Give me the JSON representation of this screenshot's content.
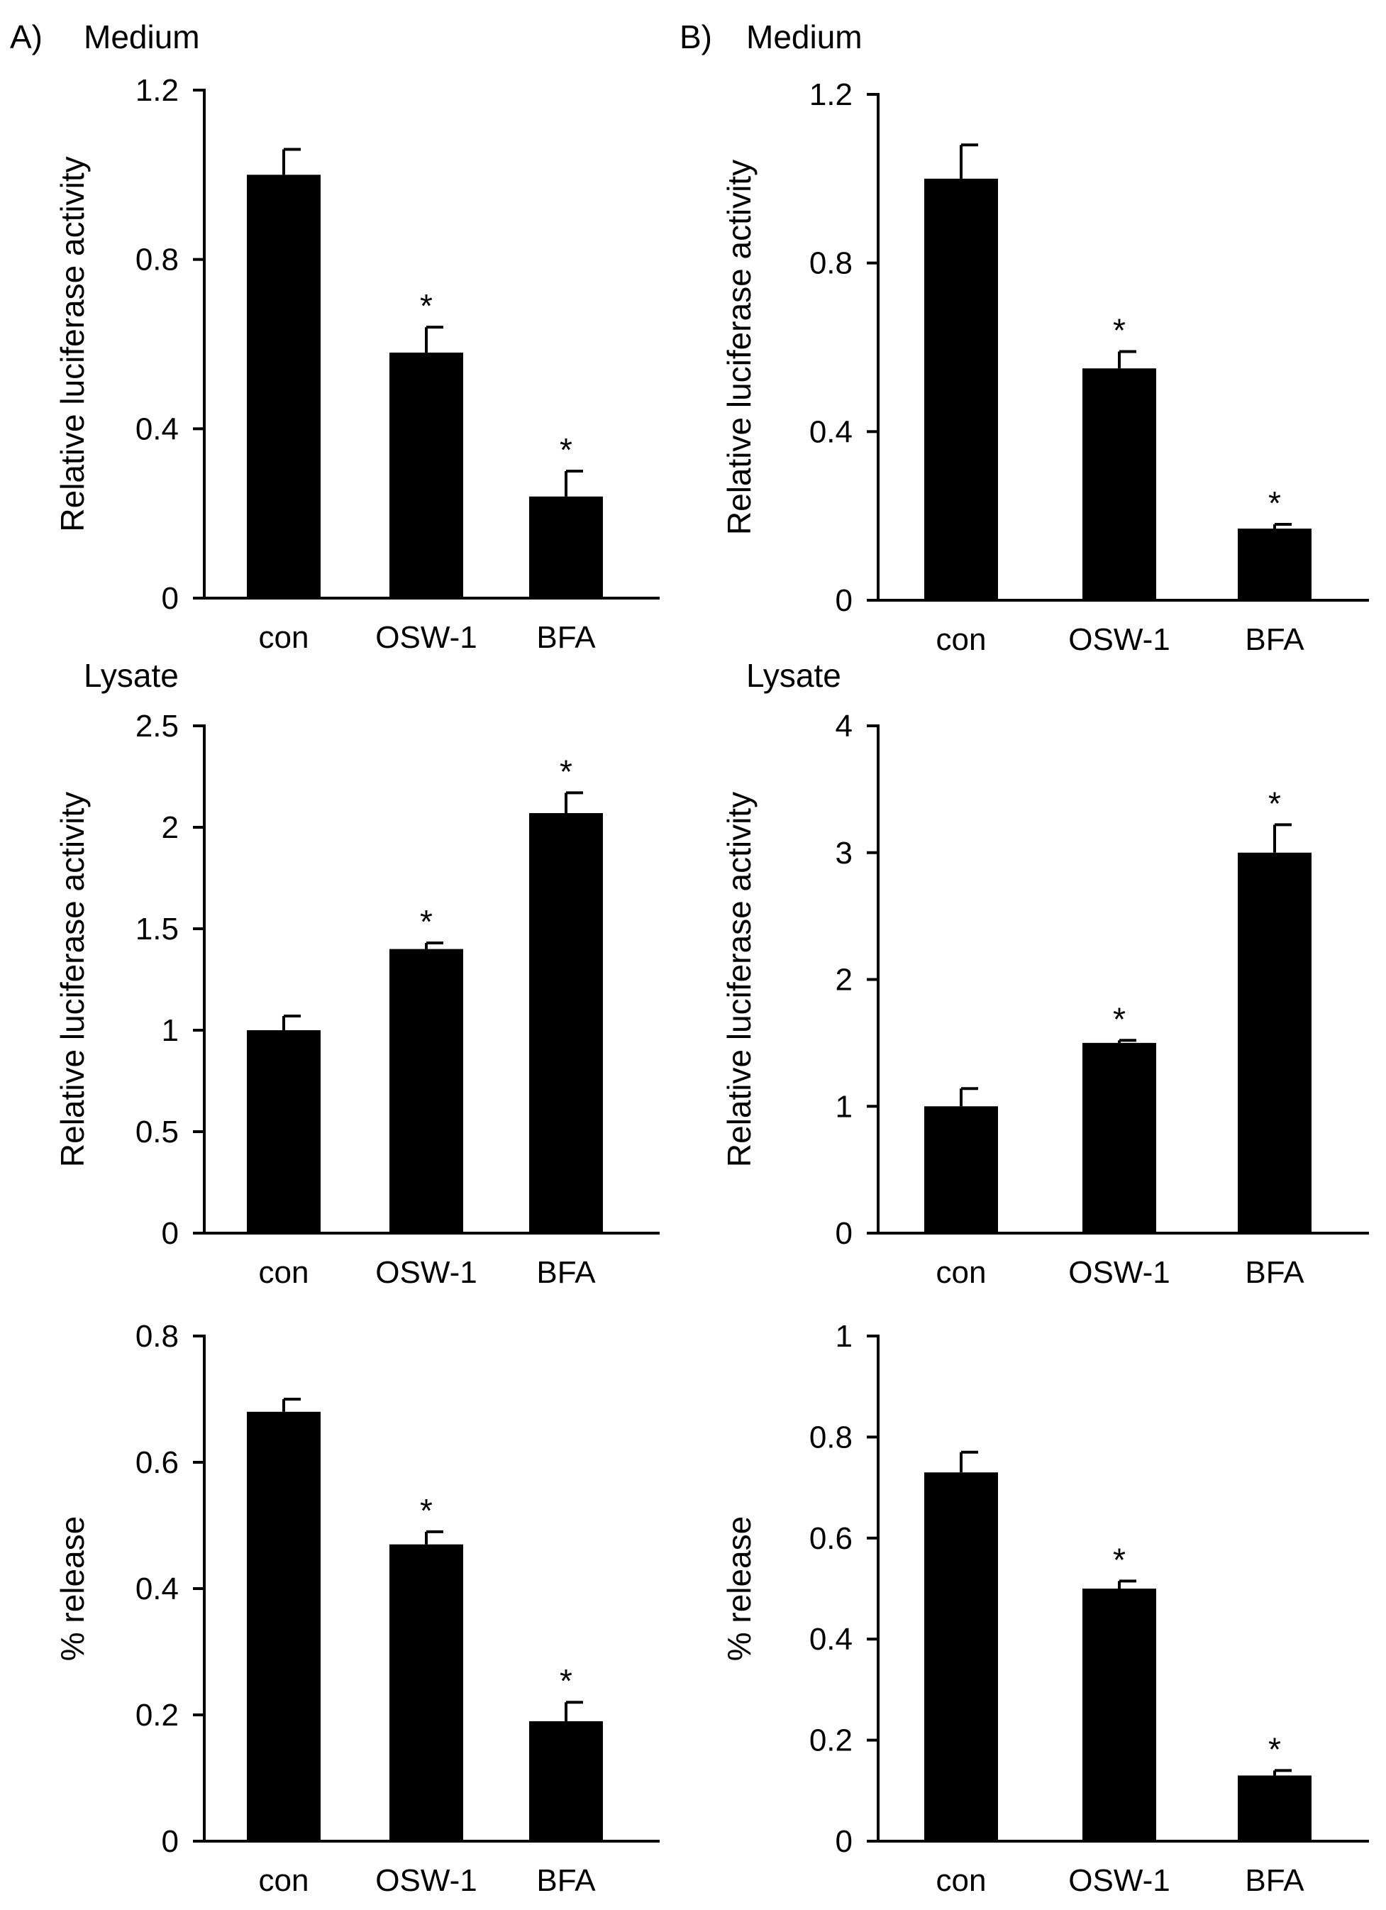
{
  "panels": [
    {
      "label": "A)"
    },
    {
      "label": "B)"
    }
  ],
  "chart_data": [
    {
      "panel": "A)",
      "type": "bar",
      "title": "Medium",
      "categories": [
        "con",
        "OSW-1",
        "BFA"
      ],
      "values": [
        1.0,
        0.58,
        0.24
      ],
      "errors": [
        0.06,
        0.06,
        0.06
      ],
      "significant": [
        false,
        true,
        true
      ],
      "significance_marker": "*",
      "ylabel": "Relative luciferase activity",
      "ylim": [
        0,
        1.2
      ],
      "yticks": [
        0,
        0.4,
        0.8,
        1.2
      ],
      "ytick_labels": [
        "0",
        "0.4",
        "0.8",
        "1.2"
      ]
    },
    {
      "panel": "A)",
      "type": "bar",
      "title": "Lysate",
      "categories": [
        "con",
        "OSW-1",
        "BFA"
      ],
      "values": [
        1.0,
        1.4,
        2.07
      ],
      "errors": [
        0.07,
        0.03,
        0.1
      ],
      "significant": [
        false,
        true,
        true
      ],
      "significance_marker": "*",
      "ylabel": "Relative luciferase activity",
      "ylim": [
        0,
        2.5
      ],
      "yticks": [
        0,
        0.5,
        1,
        1.5,
        2,
        2.5
      ],
      "ytick_labels": [
        "0",
        "0.5",
        "1",
        "1.5",
        "2",
        "2.5"
      ]
    },
    {
      "panel": "A)",
      "type": "bar",
      "title": "",
      "categories": [
        "con",
        "OSW-1",
        "BFA"
      ],
      "values": [
        0.68,
        0.47,
        0.19
      ],
      "errors": [
        0.02,
        0.02,
        0.03
      ],
      "significant": [
        false,
        true,
        true
      ],
      "significance_marker": "*",
      "ylabel": "% release",
      "ylim": [
        0,
        0.8
      ],
      "yticks": [
        0,
        0.2,
        0.4,
        0.6,
        0.8
      ],
      "ytick_labels": [
        "0",
        "0.2",
        "0.4",
        "0.6",
        "0.8"
      ]
    },
    {
      "panel": "B)",
      "type": "bar",
      "title": "Medium",
      "categories": [
        "con",
        "OSW-1",
        "BFA"
      ],
      "values": [
        1.0,
        0.55,
        0.17
      ],
      "errors": [
        0.08,
        0.04,
        0.01
      ],
      "significant": [
        false,
        true,
        true
      ],
      "significance_marker": "*",
      "ylabel": "Relative luciferase activity",
      "ylim": [
        0,
        1.2
      ],
      "yticks": [
        0,
        0.4,
        0.8,
        1.2
      ],
      "ytick_labels": [
        "0",
        "0.4",
        "0.8",
        "1.2"
      ]
    },
    {
      "panel": "B)",
      "type": "bar",
      "title": "Lysate",
      "categories": [
        "con",
        "OSW-1",
        "BFA"
      ],
      "values": [
        1.0,
        1.5,
        3.0
      ],
      "errors": [
        0.14,
        0.02,
        0.22
      ],
      "significant": [
        false,
        true,
        true
      ],
      "significance_marker": "*",
      "ylabel": "Relative luciferase activity",
      "ylim": [
        0,
        4
      ],
      "yticks": [
        0,
        1,
        2,
        3,
        4
      ],
      "ytick_labels": [
        "0",
        "1",
        "2",
        "3",
        "4"
      ]
    },
    {
      "panel": "B)",
      "type": "bar",
      "title": "",
      "categories": [
        "con",
        "OSW-1",
        "BFA"
      ],
      "values": [
        0.73,
        0.5,
        0.13
      ],
      "errors": [
        0.04,
        0.015,
        0.01
      ],
      "significant": [
        false,
        true,
        true
      ],
      "significance_marker": "*",
      "ylabel": "% release",
      "ylim": [
        0,
        1
      ],
      "yticks": [
        0,
        0.2,
        0.4,
        0.6,
        0.8,
        1
      ],
      "ytick_labels": [
        "0",
        "0.2",
        "0.4",
        "0.6",
        "0.8",
        "1"
      ]
    }
  ]
}
